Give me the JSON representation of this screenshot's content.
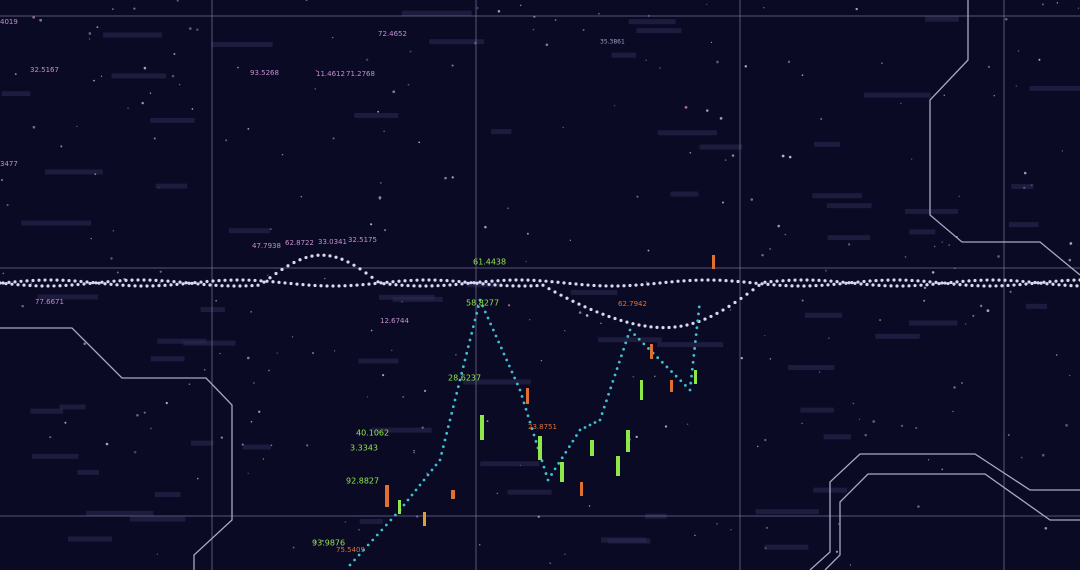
{
  "labels": [
    "32.5167",
    "72.4652",
    "93.5268",
    "11.4612",
    "71.2768",
    "47.7938",
    "62.8722",
    "33.0341",
    "32.5175",
    "40.1062",
    "3.3343",
    "92.8827",
    "93.9876",
    "75.5409",
    "28.6237",
    "23.8751",
    "77.6671",
    "3477",
    "12.6744",
    "61.4438",
    "58.8277",
    "4019",
    "35.3861",
    "62.7942"
  ]
}
